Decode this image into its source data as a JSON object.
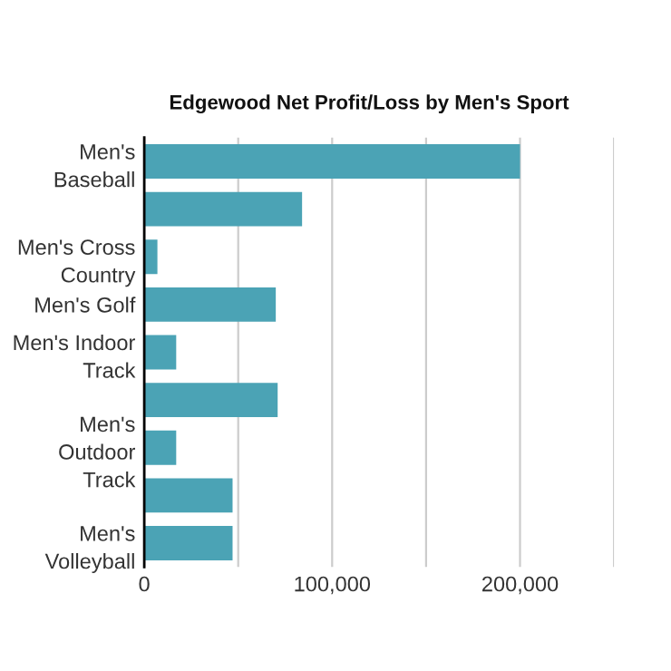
{
  "chart_data": {
    "type": "bar",
    "orientation": "horizontal",
    "title": "Edgewood Net Profit/Loss by Men's Sport",
    "categories": [
      "Men's\nBaseball",
      null,
      "Men's Cross\nCountry",
      "Men's Golf",
      "Men's Indoor\nTrack",
      null,
      "Men's\nOutdoor\nTrack",
      null,
      "Men's\nVolleyball"
    ],
    "values": [
      200000,
      84000,
      7000,
      70000,
      17000,
      71000,
      17000,
      47000,
      47000
    ],
    "color": "#4ba3b5",
    "xlim": [
      0,
      250000
    ],
    "xticks": [
      0,
      {
        "value": 50000,
        "label": null
      },
      {
        "value": 100000,
        "label": "100,000"
      },
      {
        "value": 150000,
        "label": null
      },
      {
        "value": 200000,
        "label": "200,000"
      },
      {
        "value": 250000,
        "label": null
      }
    ],
    "grid": "x"
  }
}
